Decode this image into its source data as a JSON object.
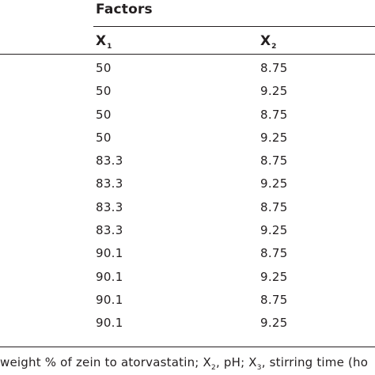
{
  "table": {
    "group_heading": "Factors",
    "columns": [
      {
        "symbol": "X",
        "subscript": "1"
      },
      {
        "symbol": "X",
        "subscript": "2"
      }
    ],
    "rows": [
      [
        "50",
        "8.75"
      ],
      [
        "50",
        "9.25"
      ],
      [
        "50",
        "8.75"
      ],
      [
        "50",
        "9.25"
      ],
      [
        "83.3",
        "8.75"
      ],
      [
        "83.3",
        "9.25"
      ],
      [
        "83.3",
        "8.75"
      ],
      [
        "83.3",
        "9.25"
      ],
      [
        "90.1",
        "8.75"
      ],
      [
        "90.1",
        "9.25"
      ],
      [
        "90.1",
        "8.75"
      ],
      [
        "90.1",
        "9.25"
      ]
    ]
  },
  "footnote": {
    "part1": " weight % of zein to atorvastatin; X",
    "sub2": "2",
    "part2": ", pH; X",
    "sub3": "3",
    "part3": ", stirring time (ho"
  }
}
